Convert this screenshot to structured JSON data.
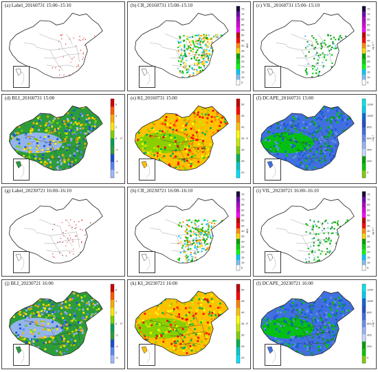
{
  "figure": {
    "panels": [
      {
        "title": "(a) Label_20160731 15:00–15:10",
        "type": "label",
        "legend": null
      },
      {
        "title": "(b) CR_20160731 15:00–15:10",
        "type": "CR",
        "legend": {
          "unit": "dBZ",
          "ticks": [
            "75",
            "70",
            "65",
            "60",
            "55",
            "50",
            "45",
            "40",
            "35",
            "30",
            "25",
            "20",
            "15",
            "10",
            "5"
          ],
          "colors": [
            "#1a0a3c",
            "#6a0dad",
            "#b000c8",
            "#d400d4",
            "#ff00ff",
            "#c00000",
            "#ff0000",
            "#ff8c00",
            "#ffd700",
            "#00a000",
            "#00d400",
            "#00ff00",
            "#00c8ff",
            "#7ec0ee",
            "#ffffff"
          ]
        }
      },
      {
        "title": "(c) VIL_20160731 15:00–15:10",
        "type": "VIL",
        "legend": {
          "unit": "kg m⁻²",
          "ticks": [
            "75",
            "70",
            "65",
            "60",
            "55",
            "50",
            "45",
            "40",
            "35",
            "30",
            "25",
            "20",
            "15",
            "10",
            "5"
          ],
          "colors": [
            "#1a0a3c",
            "#6a0dad",
            "#b000c8",
            "#d400d4",
            "#ff00ff",
            "#c00000",
            "#ff0000",
            "#ff8c00",
            "#ffd700",
            "#00a000",
            "#00d400",
            "#00ff00",
            "#00c8ff",
            "#7ec0ee",
            "#ffffff"
          ]
        }
      },
      {
        "title": "(d) BLI_20160731 15:00",
        "type": "BLI",
        "legend": {
          "unit": "°C",
          "ticks": [
            "6",
            "4",
            "2",
            "0",
            "-2",
            "-4",
            "-6"
          ],
          "colors": [
            "#d00000",
            "#ff5a00",
            "#ffaa00",
            "#ffe800",
            "#7ed000",
            "#00a050",
            "#2c9c3c",
            "#1a4fd0",
            "#5b86f0",
            "#9fb8ff"
          ]
        }
      },
      {
        "title": "(e) KI_20160731 15:00",
        "type": "KI",
        "legend": {
          "unit": "°C",
          "ticks": [
            "50",
            "45",
            "40",
            "35",
            "30",
            "25",
            "20"
          ],
          "colors": [
            "#c00000",
            "#ff0000",
            "#ff8000",
            "#ffc000",
            "#ffff00",
            "#c8e800",
            "#7ed000",
            "#00b050",
            "#00c8c8",
            "#00e0ff"
          ]
        }
      },
      {
        "title": "(f) DCAPE_20160731 15:00",
        "type": "DCAPE",
        "legend": {
          "unit": "J kg⁻¹",
          "ticks": [
            "1200",
            "1000",
            "800",
            "600",
            "400",
            "200",
            "0"
          ],
          "colors": [
            "#00e6e6",
            "#00ccee",
            "#1066d8",
            "#2850c8",
            "#4070e0",
            "#6a90ea",
            "#9ab4f2",
            "#c8d8ff",
            "#00a000",
            "#00c800",
            "#7ed000"
          ]
        }
      },
      {
        "title": "(g) Label_20230721 16:00–16:10",
        "type": "label",
        "legend": null
      },
      {
        "title": "(h) CR_20230721 16:00–16:10",
        "type": "CR",
        "legend": {
          "unit": "dBZ",
          "ticks": [
            "75",
            "70",
            "65",
            "60",
            "55",
            "50",
            "45",
            "40",
            "35",
            "30",
            "25",
            "20",
            "15",
            "10",
            "5"
          ],
          "colors": [
            "#1a0a3c",
            "#6a0dad",
            "#b000c8",
            "#d400d4",
            "#ff00ff",
            "#c00000",
            "#ff0000",
            "#ff8c00",
            "#ffd700",
            "#00a000",
            "#00d400",
            "#00ff00",
            "#00c8ff",
            "#7ec0ee",
            "#ffffff"
          ]
        }
      },
      {
        "title": "(i) VIL_20230721 16:00–16:10",
        "type": "VIL",
        "legend": {
          "unit": "kg m⁻²",
          "ticks": [
            "75",
            "70",
            "65",
            "60",
            "55",
            "50",
            "45",
            "40",
            "35",
            "30",
            "25",
            "20",
            "15",
            "10",
            "5"
          ],
          "colors": [
            "#1a0a3c",
            "#6a0dad",
            "#b000c8",
            "#d400d4",
            "#ff00ff",
            "#c00000",
            "#ff0000",
            "#ff8c00",
            "#ffd700",
            "#00a000",
            "#00d400",
            "#00ff00",
            "#00c8ff",
            "#7ec0ee",
            "#ffffff"
          ]
        }
      },
      {
        "title": "(j) BLI_20230721 16:00",
        "type": "BLI",
        "legend": {
          "unit": "°C",
          "ticks": [
            "6",
            "4",
            "2",
            "0",
            "-2",
            "-4",
            "-6"
          ],
          "colors": [
            "#d00000",
            "#ff5a00",
            "#ffaa00",
            "#ffe800",
            "#7ed000",
            "#00a050",
            "#2c9c3c",
            "#1a4fd0",
            "#5b86f0",
            "#9fb8ff"
          ]
        }
      },
      {
        "title": "(k) KI_20230721 16:00",
        "type": "KI",
        "legend": {
          "unit": "°C",
          "ticks": [
            "50",
            "45",
            "40",
            "35",
            "30",
            "25",
            "20"
          ],
          "colors": [
            "#c00000",
            "#ff0000",
            "#ff8000",
            "#ffc000",
            "#ffff00",
            "#c8e800",
            "#7ed000",
            "#00b050",
            "#00c8c8",
            "#00e0ff"
          ]
        }
      },
      {
        "title": "(l) DCAPE_20230721 16:00",
        "type": "DCAPE",
        "legend": {
          "unit": "J kg⁻¹",
          "ticks": [
            "1200",
            "1000",
            "800",
            "600",
            "400",
            "200",
            "0"
          ],
          "colors": [
            "#00e6e6",
            "#00ccee",
            "#1066d8",
            "#2850c8",
            "#4070e0",
            "#6a90ea",
            "#9ab4f2",
            "#c8d8ff",
            "#00a000",
            "#00c800",
            "#7ed000"
          ]
        }
      }
    ]
  }
}
